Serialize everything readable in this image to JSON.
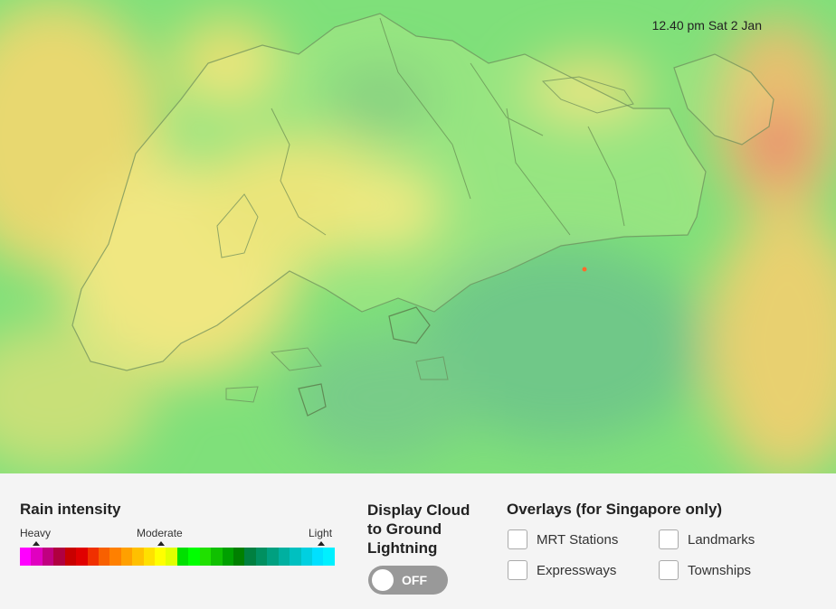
{
  "timestamp": "12.40 pm Sat 2 Jan",
  "legend": {
    "title": "Rain intensity",
    "labels": {
      "heavy": "Heavy",
      "moderate": "Moderate",
      "light": "Light"
    },
    "colors": [
      "#ff00ff",
      "#e000c0",
      "#c00080",
      "#b00040",
      "#c80000",
      "#e00000",
      "#f03000",
      "#f86000",
      "#ff8000",
      "#ffa000",
      "#ffc000",
      "#ffe000",
      "#ffff00",
      "#e0ff00",
      "#00e000",
      "#00ff00",
      "#20e000",
      "#10c000",
      "#00a000",
      "#008000",
      "#008040",
      "#009060",
      "#00a080",
      "#00b0a0",
      "#00c0c0",
      "#00d0e0",
      "#00e0ff",
      "#00f0ff"
    ]
  },
  "lightning": {
    "title": "Display Cloud to Ground Lightning",
    "toggle_label": "OFF",
    "enabled": false
  },
  "overlays": {
    "title": "Overlays (for Singapore only)",
    "items": [
      {
        "label": "MRT Stations",
        "checked": false
      },
      {
        "label": "Landmarks",
        "checked": false
      },
      {
        "label": "Expressways",
        "checked": false
      },
      {
        "label": "Townships",
        "checked": false
      }
    ]
  }
}
